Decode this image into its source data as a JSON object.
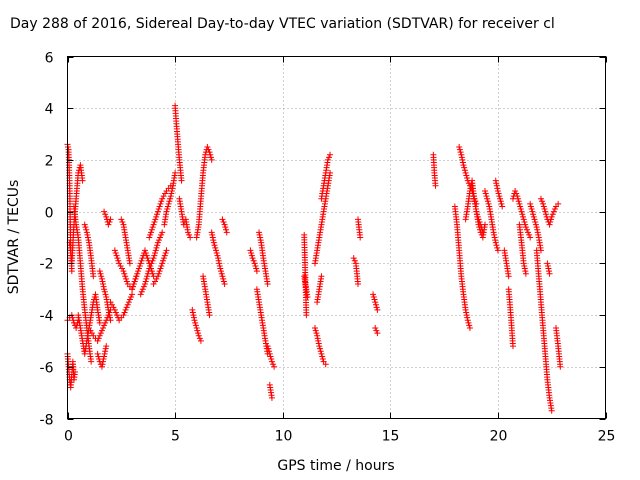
{
  "chart_data": {
    "type": "scatter",
    "title": "Day 288 of 2016, Sidereal Day-to-day VTEC variation (SDTVAR) for receiver cl",
    "xlabel": "GPS time / hours",
    "ylabel": "SDTVAR / TECUs",
    "xlim": [
      0,
      25
    ],
    "ylim": [
      -8,
      6
    ],
    "xticks": [
      0,
      5,
      10,
      15,
      20,
      25
    ],
    "yticks": [
      -8,
      -6,
      -4,
      -2,
      0,
      2,
      4,
      6
    ],
    "xtick_labels": [
      "0",
      "5",
      "10",
      "15",
      "20",
      "25"
    ],
    "ytick_labels": [
      "-8",
      "-6",
      "-4",
      "-2",
      "0",
      "2",
      "4",
      "6"
    ],
    "grid": true,
    "marker": "+",
    "color": "#ff0000",
    "segments": [
      {
        "x": [
          0.0,
          0.05,
          0.1,
          0.15,
          0.2
        ],
        "y": [
          2.6,
          2.4,
          1.0,
          -1.5,
          -2.3
        ]
      },
      {
        "x": [
          0.0,
          0.05,
          0.1,
          0.15,
          0.2,
          0.25,
          0.3,
          0.35
        ],
        "y": [
          -5.5,
          -6.0,
          -6.5,
          -6.8,
          -6.3,
          -5.8,
          -6.5,
          -6.2
        ]
      },
      {
        "x": [
          0.0,
          0.1,
          0.2,
          0.3,
          0.4,
          0.5
        ],
        "y": [
          -4.2,
          -4.1,
          -4.0,
          -4.3,
          -4.5,
          -4.2
        ]
      },
      {
        "x": [
          0.1,
          0.2,
          0.3,
          0.4,
          0.5,
          0.6,
          0.7
        ],
        "y": [
          -1.2,
          -2.0,
          -0.5,
          0.5,
          1.5,
          1.8,
          1.2
        ]
      },
      {
        "x": [
          0.3,
          0.4,
          0.5,
          0.6,
          0.7,
          0.8,
          0.9,
          1.0,
          1.1
        ],
        "y": [
          0.2,
          -0.5,
          -1.0,
          -2.0,
          -3.0,
          -3.8,
          -4.5,
          -5.2,
          -5.8
        ]
      },
      {
        "x": [
          0.5,
          0.6,
          0.7,
          0.8,
          0.9,
          1.0,
          1.1,
          1.2,
          1.3,
          1.4,
          1.5
        ],
        "y": [
          -4.0,
          -4.5,
          -5.0,
          -5.5,
          -5.0,
          -4.5,
          -4.0,
          -3.5,
          -3.2,
          -3.8,
          -4.3
        ]
      },
      {
        "x": [
          0.8,
          0.9,
          1.0,
          1.1,
          1.2
        ],
        "y": [
          -0.5,
          -0.8,
          -1.2,
          -1.8,
          -2.5
        ]
      },
      {
        "x": [
          1.0,
          1.2,
          1.4,
          1.6,
          1.8,
          2.0
        ],
        "y": [
          -4.5,
          -4.8,
          -5.0,
          -4.6,
          -4.2,
          -3.8
        ]
      },
      {
        "x": [
          1.4,
          1.5,
          1.6,
          1.7,
          1.8
        ],
        "y": [
          -5.5,
          -5.8,
          -6.0,
          -5.6,
          -5.2
        ]
      },
      {
        "x": [
          1.5,
          1.6,
          1.7,
          1.8,
          1.9,
          2.0
        ],
        "y": [
          -2.3,
          -2.6,
          -3.0,
          -3.3,
          -3.8,
          -4.2
        ]
      },
      {
        "x": [
          1.7,
          1.8,
          1.9,
          2.0
        ],
        "y": [
          0.0,
          -0.2,
          -0.5,
          -0.3
        ]
      },
      {
        "x": [
          2.0,
          2.2,
          2.4,
          2.6,
          2.8,
          3.0
        ],
        "y": [
          -3.5,
          -3.8,
          -4.2,
          -4.0,
          -3.6,
          -3.2
        ]
      },
      {
        "x": [
          2.2,
          2.4,
          2.6,
          2.8,
          3.0,
          3.2
        ],
        "y": [
          -1.5,
          -2.0,
          -2.3,
          -2.8,
          -3.0,
          -2.5
        ]
      },
      {
        "x": [
          2.5,
          2.6,
          2.7,
          2.8,
          2.9
        ],
        "y": [
          -0.3,
          -0.5,
          -1.0,
          -1.5,
          -2.0
        ]
      },
      {
        "x": [
          3.0,
          3.2,
          3.4,
          3.6,
          3.8,
          4.0
        ],
        "y": [
          -3.0,
          -2.5,
          -2.0,
          -1.5,
          -2.0,
          -2.5
        ]
      },
      {
        "x": [
          3.4,
          3.6,
          3.8,
          4.0,
          4.2,
          4.4
        ],
        "y": [
          -3.2,
          -2.8,
          -2.2,
          -1.8,
          -1.2,
          -0.8
        ]
      },
      {
        "x": [
          3.8,
          4.0,
          4.2,
          4.4,
          4.6,
          4.8
        ],
        "y": [
          -1.0,
          -0.5,
          0.0,
          0.5,
          0.8,
          1.0
        ]
      },
      {
        "x": [
          4.0,
          4.2,
          4.4,
          4.6
        ],
        "y": [
          -2.8,
          -2.5,
          -2.0,
          -1.5
        ]
      },
      {
        "x": [
          4.5,
          4.6,
          4.7,
          4.8,
          4.9,
          5.0
        ],
        "y": [
          -0.5,
          0.0,
          0.3,
          0.6,
          1.0,
          1.5
        ]
      },
      {
        "x": [
          5.0,
          5.05,
          5.1,
          5.15,
          5.2,
          5.25,
          5.3
        ],
        "y": [
          4.1,
          3.5,
          3.0,
          2.5,
          2.0,
          1.6,
          1.2
        ]
      },
      {
        "x": [
          5.2,
          5.3,
          5.4,
          5.5,
          5.6,
          5.7
        ],
        "y": [
          0.5,
          0.0,
          -0.5,
          -0.3,
          -0.8,
          -1.0
        ]
      },
      {
        "x": [
          5.8,
          5.9,
          6.0,
          6.1,
          6.2
        ],
        "y": [
          -3.8,
          -4.2,
          -4.5,
          -4.8,
          -5.0
        ]
      },
      {
        "x": [
          6.0,
          6.1,
          6.2,
          6.3,
          6.4,
          6.5,
          6.6,
          6.7
        ],
        "y": [
          -1.0,
          -0.5,
          0.5,
          1.5,
          2.2,
          2.5,
          2.3,
          2.0
        ]
      },
      {
        "x": [
          6.3,
          6.4,
          6.5,
          6.6
        ],
        "y": [
          -2.5,
          -3.0,
          -3.5,
          -4.0
        ]
      },
      {
        "x": [
          6.7,
          6.8,
          6.9,
          7.0,
          7.1,
          7.2,
          7.3
        ],
        "y": [
          -0.8,
          -1.2,
          -1.5,
          -1.8,
          -2.2,
          -2.5,
          -2.8
        ]
      },
      {
        "x": [
          7.2,
          7.3,
          7.4
        ],
        "y": [
          -0.3,
          -0.5,
          -0.8
        ]
      },
      {
        "x": [
          8.5,
          8.6,
          8.7,
          8.8
        ],
        "y": [
          -1.5,
          -1.8,
          -2.0,
          -2.3
        ]
      },
      {
        "x": [
          8.8,
          8.9,
          9.0,
          9.1,
          9.2,
          9.3
        ],
        "y": [
          -3.0,
          -3.5,
          -4.0,
          -4.5,
          -5.0,
          -5.5
        ]
      },
      {
        "x": [
          8.9,
          9.0,
          9.1,
          9.2,
          9.3
        ],
        "y": [
          -0.8,
          -1.2,
          -1.8,
          -2.3,
          -2.8
        ]
      },
      {
        "x": [
          9.3,
          9.4,
          9.5,
          9.6
        ],
        "y": [
          -5.2,
          -5.5,
          -5.8,
          -6.0
        ]
      },
      {
        "x": [
          9.4,
          9.5
        ],
        "y": [
          -6.7,
          -7.2
        ]
      },
      {
        "x": [
          11.0,
          11.1
        ],
        "y": [
          -0.9,
          -4.0
        ]
      },
      {
        "x": [
          11.0,
          11.05,
          11.1,
          11.15
        ],
        "y": [
          -2.5,
          -2.8,
          -3.0,
          -3.3
        ]
      },
      {
        "x": [
          11.5,
          11.6,
          11.7,
          11.8,
          11.9,
          12.0
        ],
        "y": [
          -4.5,
          -4.8,
          -5.2,
          -5.5,
          -5.8,
          -5.9
        ]
      },
      {
        "x": [
          11.5,
          11.6,
          11.7,
          11.8,
          11.9,
          12.0,
          12.1,
          12.2
        ],
        "y": [
          -2.0,
          -1.5,
          -1.0,
          -0.5,
          0.0,
          0.5,
          1.0,
          1.5
        ]
      },
      {
        "x": [
          11.8,
          11.9,
          12.0,
          12.1,
          12.2
        ],
        "y": [
          0.5,
          1.0,
          1.5,
          2.0,
          2.2
        ]
      },
      {
        "x": [
          11.6,
          11.7,
          11.8
        ],
        "y": [
          -3.5,
          -3.0,
          -2.5
        ]
      },
      {
        "x": [
          13.3,
          13.4,
          13.5
        ],
        "y": [
          -1.8,
          -2.0,
          -2.8
        ]
      },
      {
        "x": [
          13.5,
          13.6
        ],
        "y": [
          -0.3,
          -1.0
        ]
      },
      {
        "x": [
          14.2,
          14.3,
          14.4
        ],
        "y": [
          -3.2,
          -3.5,
          -3.8
        ]
      },
      {
        "x": [
          14.3,
          14.4
        ],
        "y": [
          -4.5,
          -4.7
        ]
      },
      {
        "x": [
          17.0,
          17.05,
          17.1
        ],
        "y": [
          2.2,
          1.5,
          1.0
        ]
      },
      {
        "x": [
          18.0,
          18.1,
          18.2,
          18.3,
          18.4,
          18.5,
          18.6,
          18.7
        ],
        "y": [
          0.2,
          -0.5,
          -1.5,
          -2.5,
          -3.2,
          -3.8,
          -4.2,
          -4.5
        ]
      },
      {
        "x": [
          18.2,
          18.3,
          18.4,
          18.5,
          18.6,
          18.7,
          18.8,
          18.9,
          19.0
        ],
        "y": [
          2.5,
          2.2,
          1.8,
          1.5,
          1.2,
          1.0,
          0.8,
          0.5,
          0.3
        ]
      },
      {
        "x": [
          18.5,
          18.6,
          18.7,
          18.8,
          18.9,
          19.0,
          19.1,
          19.2,
          19.3
        ],
        "y": [
          -0.3,
          0.2,
          0.8,
          1.2,
          0.5,
          0.0,
          -0.3,
          -0.5,
          -0.8
        ]
      },
      {
        "x": [
          18.8,
          18.9,
          19.0,
          19.1,
          19.2,
          19.3,
          19.4
        ],
        "y": [
          1.0,
          0.5,
          0.0,
          -0.5,
          -0.8,
          -1.0,
          -0.5
        ]
      },
      {
        "x": [
          19.4,
          19.5,
          19.6,
          19.7,
          19.8,
          19.9,
          20.0
        ],
        "y": [
          0.8,
          0.5,
          0.2,
          -0.3,
          -0.8,
          -1.2,
          -1.5
        ]
      },
      {
        "x": [
          19.9,
          20.0,
          20.1,
          20.2
        ],
        "y": [
          1.2,
          0.8,
          0.5,
          0.2
        ]
      },
      {
        "x": [
          20.3,
          20.4,
          20.5
        ],
        "y": [
          -1.5,
          -2.0,
          -2.5
        ]
      },
      {
        "x": [
          20.5,
          20.6,
          20.7
        ],
        "y": [
          -3.0,
          -4.0,
          -5.2
        ]
      },
      {
        "x": [
          20.7,
          20.8,
          20.9,
          21.0,
          21.1,
          21.2,
          21.3,
          21.4,
          21.5
        ],
        "y": [
          0.5,
          0.8,
          0.6,
          0.3,
          0.0,
          -0.3,
          -0.6,
          -0.8,
          -1.0
        ]
      },
      {
        "x": [
          21.0,
          21.1,
          21.2,
          21.3
        ],
        "y": [
          -0.5,
          -1.2,
          -2.0,
          -2.4
        ]
      },
      {
        "x": [
          21.5,
          21.6,
          21.7,
          21.8,
          21.9,
          22.0
        ],
        "y": [
          0.3,
          0.0,
          -0.3,
          -0.6,
          -1.0,
          -1.5
        ]
      },
      {
        "x": [
          21.8,
          21.9,
          22.0,
          22.1,
          22.2,
          22.3,
          22.4,
          22.5
        ],
        "y": [
          -1.5,
          -2.5,
          -3.5,
          -4.5,
          -5.5,
          -6.5,
          -7.2,
          -7.7
        ]
      },
      {
        "x": [
          22.0,
          22.1,
          22.2,
          22.3,
          22.4,
          22.5,
          22.6,
          22.7,
          22.8
        ],
        "y": [
          0.5,
          0.3,
          0.0,
          -0.3,
          -0.5,
          -0.2,
          0.0,
          0.2,
          0.3
        ]
      },
      {
        "x": [
          22.3,
          22.4
        ],
        "y": [
          -2.0,
          -2.4
        ]
      },
      {
        "x": [
          22.7,
          22.8,
          22.9
        ],
        "y": [
          -4.5,
          -5.2,
          -6.0
        ]
      }
    ]
  }
}
